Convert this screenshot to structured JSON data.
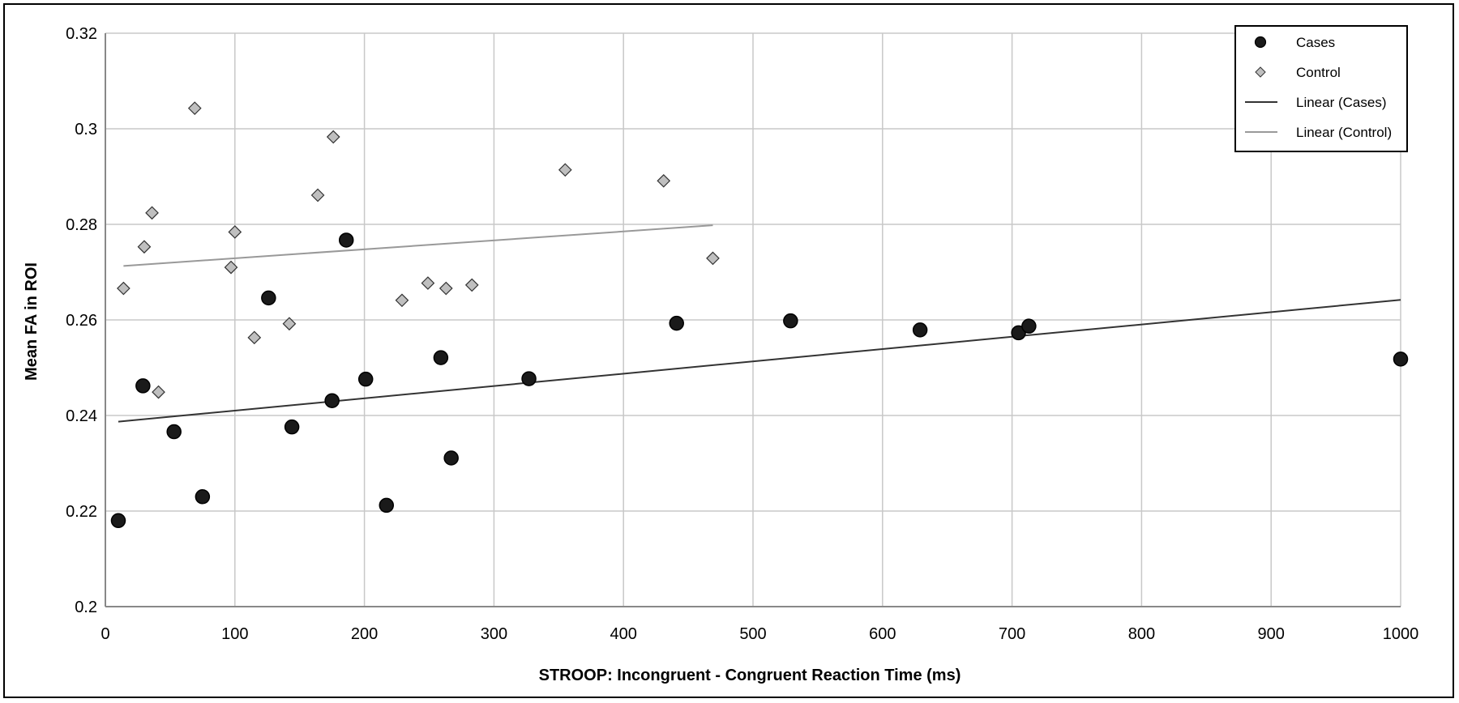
{
  "chart_data": {
    "type": "scatter",
    "xlabel": "STROOP:  Incongruent - Congruent Reaction Time (ms)",
    "ylabel": "Mean FA in ROI",
    "xlim": [
      0,
      1000
    ],
    "ylim": [
      0.2,
      0.32
    ],
    "xticks": [
      0,
      100,
      200,
      300,
      400,
      500,
      600,
      700,
      800,
      900,
      1000
    ],
    "yticks": [
      0.2,
      0.22,
      0.24,
      0.26,
      0.28,
      0.3,
      0.32
    ],
    "xtick_labels": [
      "0",
      "100",
      "200",
      "300",
      "400",
      "500",
      "600",
      "700",
      "800",
      "900",
      "1000"
    ],
    "ytick_labels": [
      "0.2",
      "0.22",
      "0.24",
      "0.26",
      "0.28",
      "0.3",
      "0.32"
    ],
    "grid": true,
    "legend_position": "top-right",
    "series": [
      {
        "name": "Cases",
        "marker": "circle",
        "color": "#1a1a1a",
        "x": [
          10,
          29,
          53,
          75,
          126,
          144,
          175,
          186,
          201,
          217,
          259,
          267,
          327,
          441,
          529,
          629,
          705,
          713,
          1000
        ],
        "y": [
          0.218,
          0.2462,
          0.2366,
          0.223,
          0.2646,
          0.2376,
          0.2431,
          0.2767,
          0.2476,
          0.2212,
          0.2521,
          0.2311,
          0.2477,
          0.2593,
          0.2598,
          0.2579,
          0.2573,
          0.2587,
          0.2518
        ]
      },
      {
        "name": "Control",
        "marker": "diamond",
        "color": "#bfbfbf",
        "x": [
          14,
          30,
          36,
          41,
          69,
          97,
          100,
          115,
          142,
          164,
          176,
          229,
          249,
          263,
          283,
          355,
          431,
          469
        ],
        "y": [
          0.2666,
          0.2753,
          0.2824,
          0.2449,
          0.3043,
          0.271,
          0.2784,
          0.2563,
          0.2592,
          0.2861,
          0.2983,
          0.2641,
          0.2677,
          0.2666,
          0.2673,
          0.2914,
          0.2891,
          0.2729
        ]
      }
    ],
    "trendlines": [
      {
        "name": "Linear (Cases)",
        "color": "#333333",
        "x": [
          10,
          1000
        ],
        "y": [
          0.2387,
          0.2642
        ]
      },
      {
        "name": "Linear (Control)",
        "color": "#999999",
        "x": [
          14,
          469
        ],
        "y": [
          0.2713,
          0.2798
        ]
      }
    ]
  }
}
